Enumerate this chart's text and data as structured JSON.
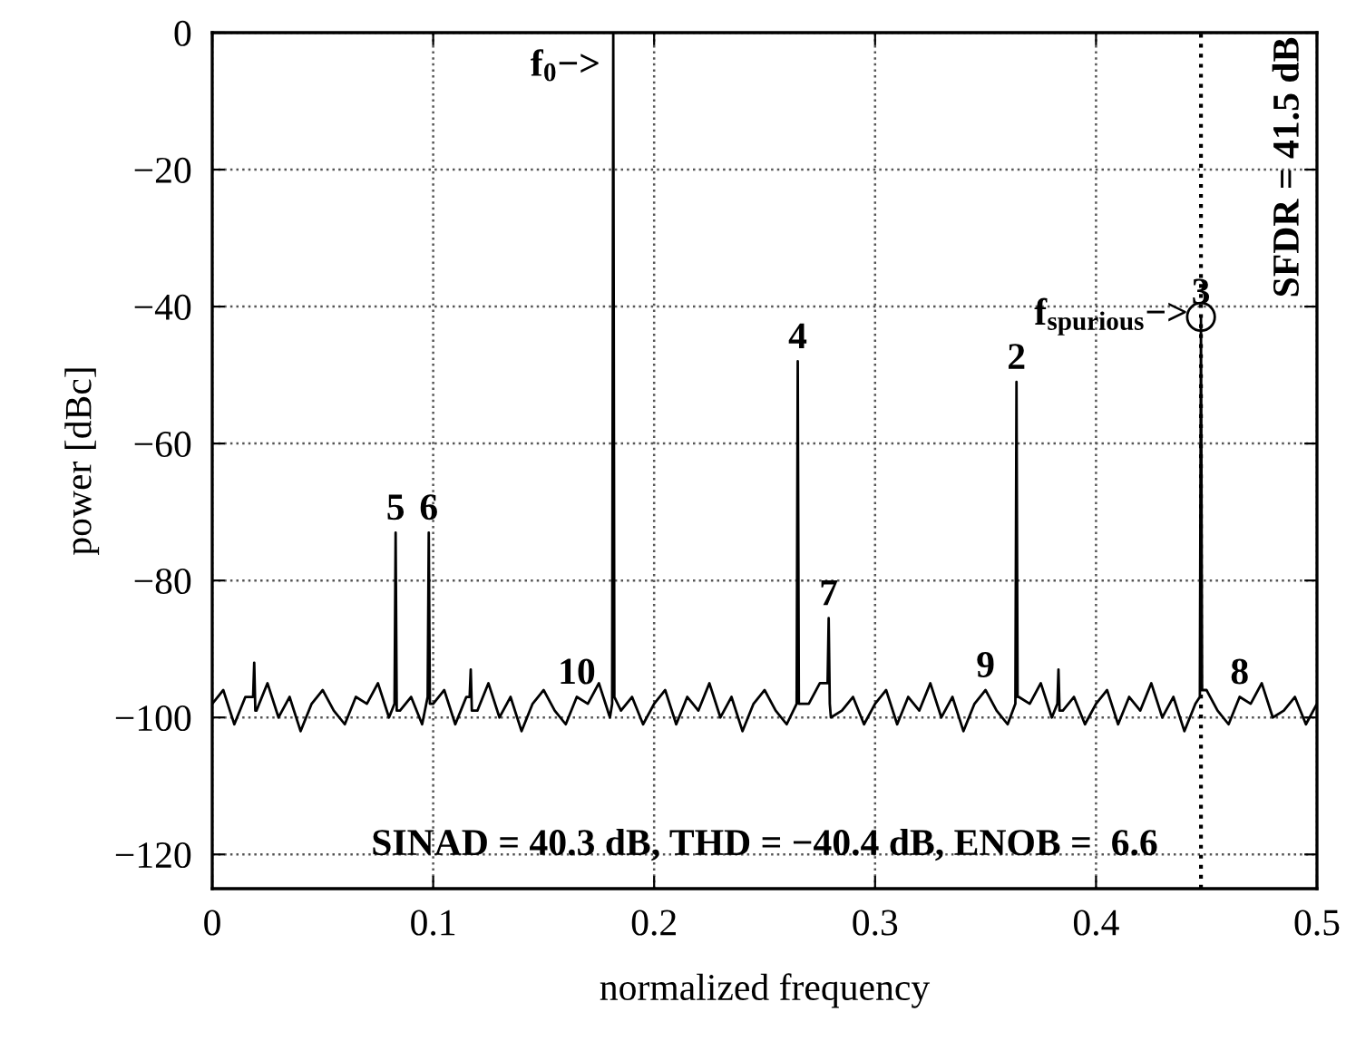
{
  "chart_data": {
    "type": "line",
    "xlabel": "normalized frequency",
    "ylabel": "power [dBc]",
    "xlim": [
      0,
      0.5
    ],
    "ylim": [
      -125,
      0
    ],
    "xticks": [
      0,
      0.1,
      0.2,
      0.3,
      0.4,
      0.5
    ],
    "yticks": [
      {
        "value": -120,
        "label": "−120"
      },
      {
        "value": -100,
        "label": "−100"
      },
      {
        "value": -80,
        "label": "−80"
      },
      {
        "value": -60,
        "label": "−60"
      },
      {
        "value": -40,
        "label": "−40"
      },
      {
        "value": -20,
        "label": "−20"
      },
      0
    ],
    "grid": true,
    "legend": false,
    "series": [
      {
        "color": "#000000",
        "line_style": "solid",
        "marker": "none",
        "x": [
          0,
          0.005,
          0.01,
          0.015,
          0.0185,
          0.019,
          0.0195,
          0.02,
          0.025,
          0.03,
          0.035,
          0.04,
          0.045,
          0.05,
          0.055,
          0.06,
          0.065,
          0.07,
          0.075,
          0.08,
          0.0825,
          0.083,
          0.0835,
          0.085,
          0.09,
          0.095,
          0.0975,
          0.098,
          0.0985,
          0.1,
          0.105,
          0.11,
          0.115,
          0.1165,
          0.117,
          0.1175,
          0.12,
          0.125,
          0.13,
          0.135,
          0.14,
          0.145,
          0.15,
          0.155,
          0.16,
          0.165,
          0.17,
          0.175,
          0.18,
          0.181,
          0.1815,
          0.182,
          0.185,
          0.19,
          0.195,
          0.2,
          0.205,
          0.21,
          0.215,
          0.22,
          0.225,
          0.23,
          0.235,
          0.24,
          0.245,
          0.25,
          0.255,
          0.26,
          0.2645,
          0.265,
          0.2655,
          0.27,
          0.275,
          0.2785,
          0.279,
          0.2795,
          0.28,
          0.285,
          0.29,
          0.295,
          0.3,
          0.305,
          0.31,
          0.315,
          0.32,
          0.325,
          0.33,
          0.335,
          0.34,
          0.345,
          0.35,
          0.355,
          0.36,
          0.3635,
          0.364,
          0.3645,
          0.365,
          0.37,
          0.375,
          0.38,
          0.3825,
          0.383,
          0.3835,
          0.385,
          0.39,
          0.395,
          0.4,
          0.405,
          0.41,
          0.415,
          0.42,
          0.425,
          0.43,
          0.435,
          0.44,
          0.445,
          0.447,
          0.4475,
          0.448,
          0.45,
          0.455,
          0.46,
          0.465,
          0.47,
          0.475,
          0.48,
          0.485,
          0.49,
          0.495,
          0.5
        ],
        "values": [
          -98,
          -96,
          -101,
          -97,
          -97,
          -92,
          -99,
          -99,
          -95,
          -100,
          -97,
          -102,
          -98,
          -96,
          -99,
          -101,
          -97,
          -98,
          -95,
          -100,
          -98,
          -73,
          -99,
          -99,
          -97,
          -101,
          -97,
          -73,
          -98,
          -98,
          -96,
          -101,
          -97,
          -97,
          -93,
          -99,
          -99,
          -95,
          -100,
          -97,
          -102,
          -98,
          -96,
          -99,
          -101,
          -97,
          -98,
          -95,
          -100,
          -98,
          0,
          -97,
          -99,
          -97,
          -101,
          -98,
          -96,
          -101,
          -97,
          -99,
          -95,
          -100,
          -97,
          -102,
          -98,
          -96,
          -99,
          -101,
          -98,
          -48,
          -98,
          -98,
          -95,
          -95,
          -85.5,
          -98,
          -100,
          -99,
          -97,
          -101,
          -98,
          -96,
          -101,
          -97,
          -99,
          -95,
          -100,
          -97,
          -102,
          -98,
          -96,
          -99,
          -101,
          -98,
          -51,
          -97,
          -97,
          -98,
          -95,
          -100,
          -98,
          -93,
          -99,
          -99,
          -97,
          -101,
          -98,
          -96,
          -101,
          -97,
          -99,
          -95,
          -100,
          -97,
          -102,
          -98,
          -97,
          -41.5,
          -96,
          -96,
          -99,
          -101,
          -97,
          -98,
          -95,
          -100,
          -99,
          -97,
          -101,
          -98
        ]
      },
      {
        "type": "scatter",
        "color": "#000000",
        "marker": "circle",
        "x": [
          0.4475
        ],
        "values": [
          -41.5
        ]
      }
    ],
    "ref_lines": [
      {
        "axis": "x",
        "value": 0.4475,
        "color": "#000000",
        "line_style": "dotted"
      }
    ],
    "annotations": [
      "SINAD = 40.3 dB, THD = −40.4 dB, ENOB =  6.6",
      "SFDR = 41.5 dB",
      {
        "text": "f$_{0}$−>",
        "x": 0.1815,
        "y": -5
      },
      {
        "text": "f$_{spurious}$−>",
        "x": 0.4475,
        "y": -41.5
      },
      {
        "text": "2",
        "x": 0.364,
        "y": -51
      },
      {
        "text": "3",
        "x": 0.4475,
        "y": -41.5
      },
      {
        "text": "4",
        "x": 0.265,
        "y": -48
      },
      {
        "text": "5",
        "x": 0.083,
        "y": -73
      },
      {
        "text": "6",
        "x": 0.098,
        "y": -73
      },
      {
        "text": "7",
        "x": 0.279,
        "y": -85.5
      },
      {
        "text": "8",
        "x": 0.465,
        "y": -97
      },
      {
        "text": "9",
        "x": 0.35,
        "y": -96
      },
      {
        "text": "10",
        "x": 0.165,
        "y": -97
      }
    ]
  }
}
